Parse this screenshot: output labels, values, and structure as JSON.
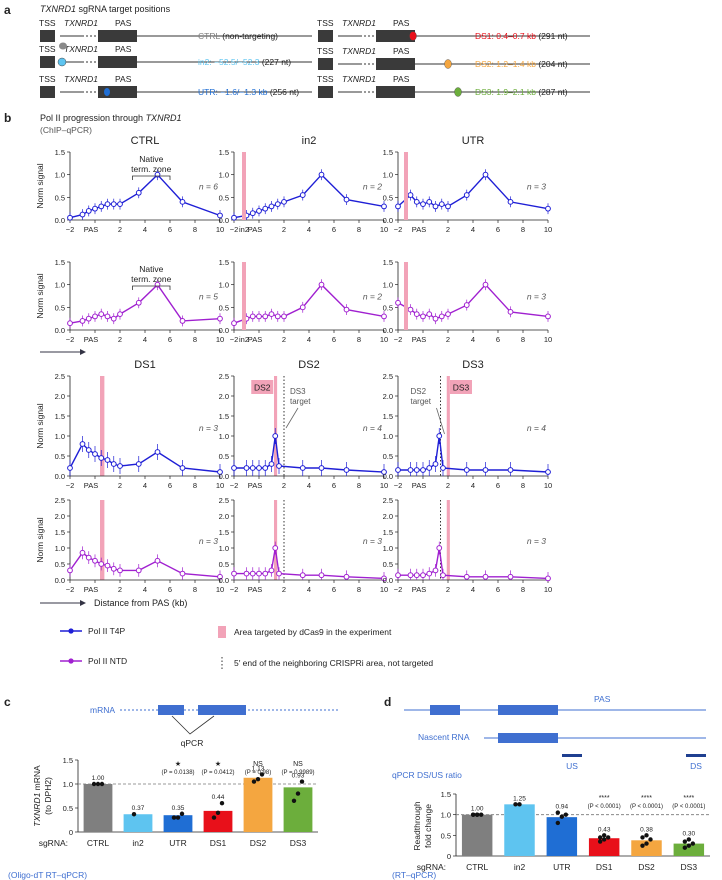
{
  "colors": {
    "t4p": "#1f1fd6",
    "ntd": "#a020d0",
    "pink": "#f2a3b8",
    "ds1": "#e8101a",
    "ds2": "#f4a640",
    "ds3": "#6cae3c",
    "in2": "#5ec4f0",
    "utr": "#1f6ed4",
    "ctrl": "#7f7f7f"
  },
  "panel_a": {
    "letter": "a",
    "title_pre": "",
    "title_gene": "TXNRD1",
    "title_post": " sgRNA target positions",
    "tss": "TSS",
    "gene": "TXNRD1",
    "pas": "PAS",
    "left_rows": [
      {
        "label": "CTRL",
        "suffix": " (non-targeting)",
        "color": "#7f7f7f"
      },
      {
        "label": "in2: −52.5/−52.3",
        "suffix": " (227 nt)",
        "color": "#5ec4f0"
      },
      {
        "label": "UTR: −1.6/−1.3 kb",
        "suffix": " (256 nt)",
        "color": "#1f6ed4"
      }
    ],
    "right_rows": [
      {
        "label": "DS1: 0.4–0.7 kb",
        "suffix": " (291 nt)",
        "color": "#e8101a"
      },
      {
        "label": "DS2: 1.2–1.4 kb",
        "suffix": " (204 nt)",
        "color": "#f4a640"
      },
      {
        "label": "DS3: 1.9–2.1 kb",
        "suffix": " (287 nt)",
        "color": "#6cae3c"
      }
    ]
  },
  "panel_b": {
    "letter": "b",
    "title_pre": "Pol II progression through ",
    "title_gene": "TXNRD1",
    "subtitle": "(ChIP–qPCR)",
    "ylabel": "Norm signal",
    "xlabel": "Distance from PAS (kb)",
    "xticks": [
      "−2",
      "PAS",
      "2",
      "4",
      "6",
      "8",
      "10"
    ],
    "native_zone": [
      "Native",
      "term. zone"
    ],
    "legend": {
      "t4p": "Pol II T4P",
      "ntd": "Pol II NTD",
      "pink": "Area targeted by dCas9 in the experiment",
      "dotted": "5′ end of the neighboring CRISPRi area, not targeted"
    },
    "col_titles": [
      "CTRL",
      "in2",
      "UTR"
    ],
    "row2_titles": [
      "DS1",
      "DS2",
      "DS3"
    ],
    "n_labels": [
      "n = 6",
      "n = 2",
      "n = 3",
      "n = 5",
      "n = 2",
      "n = 3",
      "n = 3",
      "n = 4",
      "n = 4",
      "n = 3",
      "n = 3",
      "n = 3"
    ],
    "tag_in2": "in2",
    "tag_ds2": "DS2",
    "tag_ds3": "DS3",
    "ann_ds3_target": [
      "DS3",
      "target"
    ],
    "ann_ds2_target": [
      "DS2",
      "target"
    ]
  },
  "chart_data": [
    {
      "type": "line",
      "title": "CTRL — Pol II T4P",
      "xlabel": "Distance from PAS (kb)",
      "ylabel": "Norm signal",
      "x": [
        -2,
        -1,
        -0.5,
        0,
        0.5,
        1,
        1.5,
        2,
        3.5,
        5,
        7,
        10
      ],
      "values": [
        0.05,
        0.12,
        0.2,
        0.25,
        0.3,
        0.35,
        0.35,
        0.35,
        0.6,
        1.0,
        0.4,
        0.1
      ],
      "ylim": [
        0,
        1.5
      ],
      "yticks": [
        0,
        0.5,
        1.0,
        1.5
      ]
    },
    {
      "type": "line",
      "title": "CTRL — Pol II NTD",
      "xlabel": "Distance from PAS (kb)",
      "ylabel": "Norm signal",
      "x": [
        -2,
        -1,
        -0.5,
        0,
        0.5,
        1,
        1.5,
        2,
        3.5,
        5,
        7,
        10
      ],
      "values": [
        0.15,
        0.2,
        0.25,
        0.3,
        0.35,
        0.3,
        0.25,
        0.35,
        0.6,
        1.0,
        0.2,
        0.25
      ],
      "ylim": [
        0,
        1.5
      ],
      "yticks": [
        0,
        0.5,
        1.0,
        1.5
      ]
    },
    {
      "type": "line",
      "title": "DS1 — Pol II T4P",
      "x": [
        -2,
        -1,
        -0.5,
        0,
        0.5,
        1,
        1.5,
        2,
        3.5,
        5,
        7,
        10
      ],
      "values": [
        0.2,
        0.8,
        0.65,
        0.55,
        0.45,
        0.4,
        0.3,
        0.25,
        0.3,
        0.6,
        0.2,
        0.1
      ],
      "ylim": [
        0,
        2.5
      ],
      "yticks": [
        0,
        0.5,
        1.0,
        1.5,
        2.0,
        2.5
      ]
    },
    {
      "type": "bar",
      "title": "TXNRD1 mRNA (to DPH2)",
      "categories": [
        "CTRL",
        "in2",
        "UTR",
        "DS1",
        "DS2",
        "DS3"
      ],
      "values": [
        1.0,
        0.37,
        0.35,
        0.44,
        1.13,
        0.93
      ],
      "ylim": [
        0,
        1.5
      ],
      "stats": [
        "",
        "",
        "*",
        "*",
        "NS",
        "NS"
      ],
      "pvalues": [
        "",
        "",
        "P = 0.0138",
        "P = 0.0412",
        "P = 0.98",
        "P = 0.9989"
      ]
    },
    {
      "type": "bar",
      "title": "Readthrough fold change",
      "categories": [
        "CTRL",
        "in2",
        "UTR",
        "DS1",
        "DS2",
        "DS3"
      ],
      "values": [
        1.0,
        1.25,
        0.94,
        0.43,
        0.38,
        0.3
      ],
      "ylim": [
        0,
        1.5
      ],
      "stats": [
        "",
        "",
        "",
        "****",
        "****",
        "****"
      ],
      "pvalues": [
        "",
        "",
        "",
        "P < 0.0001",
        "P < 0.0001",
        "P < 0.0001"
      ]
    }
  ],
  "panel_c": {
    "letter": "c",
    "mrna_label": "mRNA",
    "qpcr_label": "qPCR",
    "ylabel_gene": "TXNRD1",
    "ylabel_rest": " mRNA",
    "ylabel2": "(to DPH2)",
    "sgrna": "sgRNA:",
    "method": "(Oligo-dT RT–qPCR)",
    "categories": [
      "CTRL",
      "in2",
      "UTR",
      "DS1",
      "DS2",
      "DS3"
    ],
    "value_labels": [
      "1.00",
      "0.37",
      "0.35",
      "0.44",
      "1.13",
      "0.93"
    ],
    "stats": [
      "",
      "",
      "★",
      "★",
      "NS",
      "NS"
    ],
    "pvals": [
      "",
      "",
      "(P = 0.0138)",
      "(P = 0.0412)",
      "(P = 0.98)",
      "(P = 0.9989)"
    ],
    "yticks": [
      "0",
      "0.5",
      "1.0",
      "1.5"
    ]
  },
  "panel_d": {
    "letter": "d",
    "nascent_label": "Nascent RNA",
    "pas": "PAS",
    "ratio_label": "qPCR DS/US ratio",
    "us": "US",
    "ds": "DS",
    "ylabel1": "Readthrough",
    "ylabel2": "fold change",
    "sgrna": "sgRNA:",
    "method": "(RT–qPCR)",
    "categories": [
      "CTRL",
      "in2",
      "UTR",
      "DS1",
      "DS2",
      "DS3"
    ],
    "value_labels": [
      "1.00",
      "1.25",
      "0.94",
      "0.43",
      "0.38",
      "0.30"
    ],
    "stats": [
      "",
      "",
      "",
      "****",
      "****",
      "****"
    ],
    "pvals": [
      "",
      "",
      "",
      "(P < 0.0001)",
      "(P < 0.0001)",
      "(P < 0.0001)"
    ],
    "yticks": [
      "0",
      "0.5",
      "1.0",
      "1.5"
    ]
  }
}
